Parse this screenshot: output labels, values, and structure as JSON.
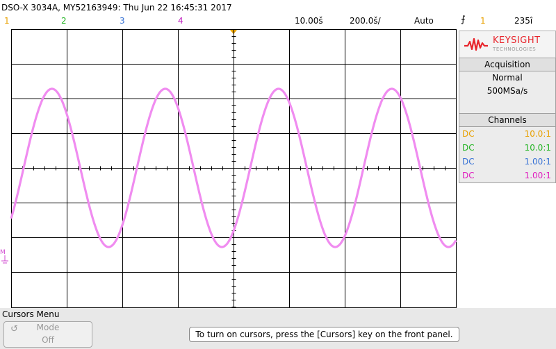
{
  "header": {
    "title": "DSO-X 3034A, MY52163949: Thu Jun 22 16:45:31 2017",
    "channels": [
      {
        "label": "1",
        "color": "#e8a000"
      },
      {
        "label": "2",
        "color": "#22b422"
      },
      {
        "label": "3",
        "color": "#3a74d6"
      },
      {
        "label": "4",
        "color": "#c020c0"
      }
    ],
    "timebase_scale": "10.00š",
    "timebase_delay": "200.0š/",
    "trigger_mode": "Auto",
    "trigger_icon": "rising-edge-icon",
    "trigger_channel": "1",
    "trigger_level": "235î"
  },
  "brand": {
    "name": "KEYSIGHT",
    "subtitle": "TECHNOLOGIES",
    "color": "#e8232a"
  },
  "acquisition": {
    "heading": "Acquisition",
    "mode": "Normal",
    "sample_rate": "500MSa/s"
  },
  "channels_panel": {
    "heading": "Channels",
    "rows": [
      {
        "coupling": "DC",
        "probe": "10.0:1",
        "color": "#e8a000"
      },
      {
        "coupling": "DC",
        "probe": "10.0:1",
        "color": "#22b422"
      },
      {
        "coupling": "DC",
        "probe": "1.00:1",
        "color": "#3a74d6"
      },
      {
        "coupling": "DC",
        "probe": "1.00:1",
        "color": "#e020c0"
      }
    ]
  },
  "trace": {
    "color": "#f08cf0",
    "ground_marker": "M",
    "periods_shown": 4
  },
  "bottom": {
    "menu_title": "Cursors Menu",
    "softkey_label": "Mode",
    "softkey_value": "Off",
    "message": "To turn on cursors, press the [Cursors] key on the front panel."
  }
}
